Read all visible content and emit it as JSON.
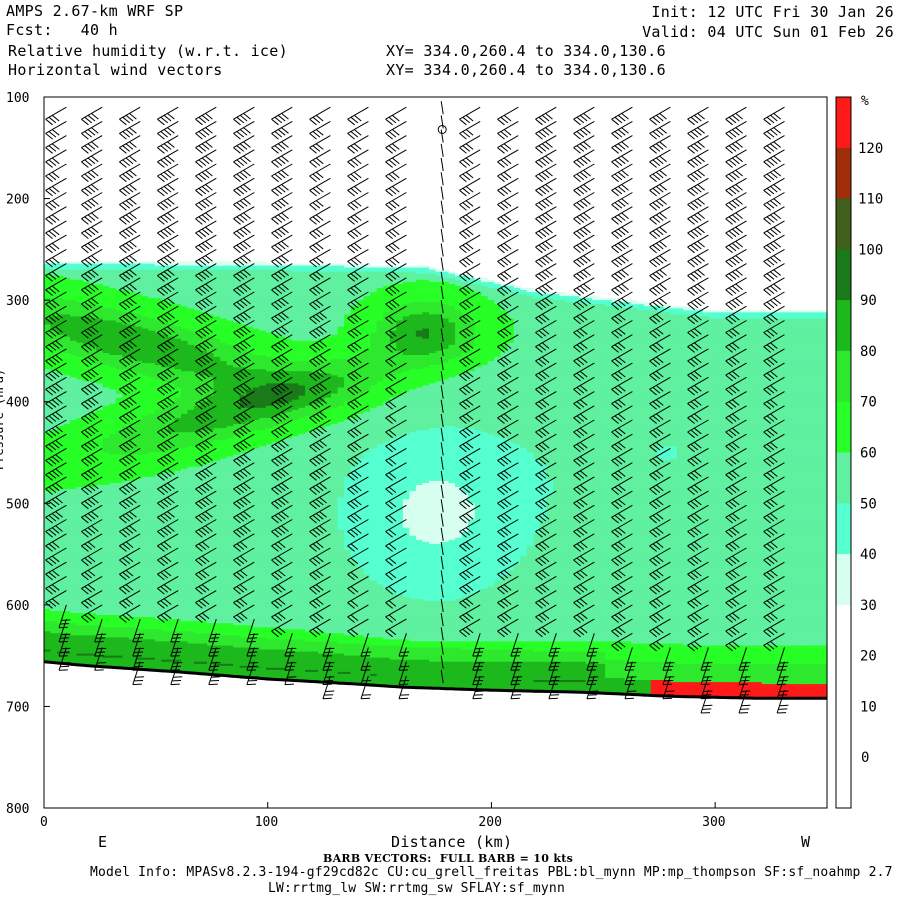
{
  "header": {
    "model_title": "AMPS 2.67-km WRF SP",
    "forecast": "Fcst:   40 h",
    "field1": "Relative humidity (w.r.t. ice)",
    "field2": "Horizontal wind vectors",
    "xy1": "XY= 334.0,260.4 to 334.0,130.6",
    "xy2": "XY= 334.0,260.4 to 334.0,130.6",
    "init": "Init: 12 UTC Fri 30 Jan 26",
    "valid": "Valid: 04 UTC Sun 01 Feb 26"
  },
  "footer": {
    "barb_note": "BARB VECTORS:  FULL BARB = 10 kts",
    "model_info": "Model Info: MPASv8.2.3-194-gf29cd82c CU:cu_grell_freitas PBL:bl_mynn MP:mp_thompson SF:sf_noahmp 2.7",
    "model_info2": "LW:rrtmg_lw SW:rrtmg_sw SFLAY:sf_mynn"
  },
  "chart_data": {
    "type": "heatmap",
    "title": "Relative humidity (w.r.t. ice)",
    "xlabel": "Distance (km)",
    "ylabel": "Pressure (hPa)",
    "xlim": [
      0,
      350
    ],
    "ylim": [
      800,
      100
    ],
    "x_ticks": [
      0,
      100,
      200,
      300
    ],
    "y_ticks": [
      100,
      200,
      300,
      400,
      500,
      600,
      700,
      800
    ],
    "x_end_labels": {
      "left": "E",
      "right": "W"
    },
    "colorbar": {
      "unit": "%",
      "levels": [
        0,
        10,
        20,
        30,
        40,
        50,
        60,
        70,
        80,
        90,
        100,
        110,
        120
      ],
      "colors": [
        "#ffffff",
        "#ffffff",
        "#ffffff",
        "#ffffff",
        "#d6fff0",
        "#55ffd0",
        "#5ff0a0",
        "#27ff27",
        "#2ee82e",
        "#1cb81c",
        "#1a7a1a",
        "#3f5f1a",
        "#a02e0a",
        "#ff1a1a"
      ]
    },
    "surface_pressure_profile": {
      "x_km": [
        0,
        20,
        60,
        100,
        140,
        160,
        200,
        240,
        280,
        320,
        350
      ],
      "p_hpa": [
        656,
        660,
        666,
        673,
        678,
        681,
        684,
        686,
        690,
        692,
        692
      ]
    },
    "cloud_top_profile": {
      "x_km": [
        0,
        100,
        170,
        220,
        300,
        350
      ],
      "p_hpa": [
        262,
        263,
        266,
        290,
        310,
        310
      ]
    },
    "barbs": {
      "columns_x_km": [
        10,
        26,
        43,
        60,
        77,
        94,
        111,
        128,
        145,
        162,
        178,
        195,
        212,
        229,
        246,
        263,
        280,
        297,
        314,
        331
      ],
      "speed_kts_upper": [
        30,
        35,
        35,
        35,
        35,
        35,
        35,
        30,
        30,
        25,
        5,
        30,
        30,
        35,
        35,
        35,
        35,
        35,
        35,
        35
      ],
      "speed_kts_mid": [
        40,
        40,
        40,
        40,
        40,
        40,
        35,
        35,
        30,
        20,
        5,
        30,
        30,
        30,
        30,
        30,
        30,
        30,
        30,
        30
      ],
      "speed_kts_low": [
        30,
        30,
        30,
        30,
        30,
        30,
        25,
        25,
        20,
        15,
        5,
        25,
        30,
        30,
        30,
        30,
        30,
        30,
        30,
        30
      ]
    }
  }
}
